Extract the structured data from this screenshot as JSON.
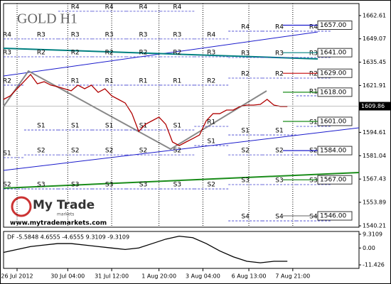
{
  "chart_data": [
    {
      "type": "line",
      "title": "GOLD H1",
      "color": "#b00000",
      "x": [
        0,
        1,
        2,
        3,
        4,
        5,
        6,
        7,
        8,
        9,
        10,
        11,
        12,
        13,
        14,
        15,
        16,
        17,
        18,
        19,
        20,
        21,
        22,
        23,
        24,
        25,
        26,
        27,
        28,
        29,
        30,
        31,
        32,
        33,
        34,
        35,
        36,
        37,
        38,
        39,
        40,
        41,
        42
      ],
      "values": [
        1613.8,
        1615.9,
        1620.0,
        1624.1,
        1628.3,
        1622.9,
        1624.1,
        1622.1,
        1621.2,
        1620.0,
        1618.8,
        1622.1,
        1620.0,
        1622.1,
        1617.9,
        1620.0,
        1615.9,
        1613.8,
        1611.7,
        1605.5,
        1595.2,
        1599.3,
        1601.4,
        1603.5,
        1599.3,
        1589.0,
        1586.9,
        1589.0,
        1591.0,
        1593.1,
        1601.4,
        1605.5,
        1605.5,
        1607.6,
        1607.6,
        1609.7,
        1610.5,
        1610.5,
        1610.9,
        1613.8,
        1610.5,
        1609.7,
        1609.7
      ],
      "xlim": [
        0,
        52.6
      ],
      "xticks": [
        {
          "value": 2,
          "label": "26 Jul 2012"
        },
        {
          "value": 9.5,
          "label": "30 Jul 04:00"
        },
        {
          "value": 16,
          "label": "31 Jul 12:00"
        },
        {
          "value": 23,
          "label": "1 Aug 20:00"
        },
        {
          "value": 29.5,
          "label": "3 Aug 04:00"
        },
        {
          "value": 36.3,
          "label": "6 Aug 13:00"
        },
        {
          "value": 42.8,
          "label": "7 Aug 21:00"
        }
      ],
      "ylim": [
        1539.4,
        1669.6
      ],
      "yticks": [
        1662.61,
        1649.07,
        1635.45,
        1621.91,
        1594.61,
        1581.04,
        1567.43,
        1553.89,
        1540.21
      ],
      "current_price": 1609.86,
      "grid": true,
      "levels": [
        {
          "value": 1657,
          "label": "1657.00",
          "color": "#1a1acc"
        },
        {
          "value": 1641,
          "label": "1641.00",
          "color": "#008080"
        },
        {
          "value": 1629,
          "label": "1629.00",
          "color": "#cc2020"
        },
        {
          "value": 1618,
          "label": "1618.00",
          "color": "#1a8c1a"
        },
        {
          "value": 1601,
          "label": "1601.00",
          "color": "#1a8c1a"
        },
        {
          "value": 1584,
          "label": "1584.00",
          "color": "#1a1acc"
        },
        {
          "value": 1567,
          "label": "1567.00",
          "color": "#1a8c1a"
        },
        {
          "value": 1546,
          "label": "1546.00",
          "color": "#808080"
        }
      ],
      "pivot_color": "#3a3acc",
      "pivots": [
        [
          {
            "name": "R4",
            "value": 1649.0
          },
          {
            "name": "R3",
            "value": 1638.6
          },
          {
            "name": "R2",
            "value": 1622.1
          },
          {
            "name": "S1",
            "value": 1579.9
          },
          {
            "name": "S2",
            "value": 1561.7
          }
        ],
        [
          {
            "name": "R3",
            "value": 1649.0
          },
          {
            "name": "R2",
            "value": 1638.6
          },
          {
            "name": "S1",
            "value": 1596.0
          },
          {
            "name": "S2",
            "value": 1581.5
          },
          {
            "name": "S3",
            "value": 1561.7
          }
        ],
        [
          {
            "name": "R4",
            "value": 1665.1
          },
          {
            "name": "R3",
            "value": 1649.0
          },
          {
            "name": "R2",
            "value": 1638.6
          },
          {
            "name": "R1",
            "value": 1622.1
          },
          {
            "name": "S1",
            "value": 1596.0
          },
          {
            "name": "S2",
            "value": 1581.5
          },
          {
            "name": "S3",
            "value": 1561.7
          }
        ],
        [
          {
            "name": "R4",
            "value": 1665.1
          },
          {
            "name": "R3",
            "value": 1649.0
          },
          {
            "name": "R2",
            "value": 1638.6
          },
          {
            "name": "R1",
            "value": 1622.1
          },
          {
            "name": "S1",
            "value": 1596.0
          },
          {
            "name": "S2",
            "value": 1581.5
          },
          {
            "name": "S3",
            "value": 1561.7
          }
        ],
        [
          {
            "name": "R4",
            "value": 1665.1
          },
          {
            "name": "R3",
            "value": 1649.0
          },
          {
            "name": "R2",
            "value": 1638.6
          },
          {
            "name": "R1",
            "value": 1622.1
          },
          {
            "name": "S1",
            "value": 1596.0
          },
          {
            "name": "S2",
            "value": 1581.5
          },
          {
            "name": "S3",
            "value": 1561.7
          }
        ],
        [
          {
            "name": "R4",
            "value": 1665.1
          },
          {
            "name": "R3",
            "value": 1649.0
          },
          {
            "name": "R2",
            "value": 1638.6
          },
          {
            "name": "R1",
            "value": 1622.1
          },
          {
            "name": "S1",
            "value": 1596.0
          },
          {
            "name": "S2",
            "value": 1581.5
          },
          {
            "name": "S3",
            "value": 1561.7
          }
        ],
        [
          {
            "name": "R4",
            "value": 1649.0
          },
          {
            "name": "R3",
            "value": 1638.6
          },
          {
            "name": "R2",
            "value": 1622.1
          },
          {
            "name": "R1",
            "value": 1598.1
          },
          {
            "name": "S1",
            "value": 1586.9
          },
          {
            "name": "S2",
            "value": 1561.7
          }
        ],
        [
          {
            "name": "R4",
            "value": 1653.5
          },
          {
            "name": "R3",
            "value": 1638.2
          },
          {
            "name": "R2",
            "value": 1626.2
          },
          {
            "name": "S1",
            "value": 1593.1
          },
          {
            "name": "S2",
            "value": 1581.5
          },
          {
            "name": "S3",
            "value": 1564.2
          },
          {
            "name": "S4",
            "value": 1543.1
          }
        ],
        [
          {
            "name": "R4",
            "value": 1653.5
          },
          {
            "name": "R3",
            "value": 1638.2
          },
          {
            "name": "R2",
            "value": 1626.2
          },
          {
            "name": "S1",
            "value": 1593.1
          },
          {
            "name": "S2",
            "value": 1581.5
          },
          {
            "name": "S3",
            "value": 1564.2
          },
          {
            "name": "S4",
            "value": 1543.1
          }
        ],
        [
          {
            "name": "R4",
            "value": 1653.5
          },
          {
            "name": "R3",
            "value": 1638.2
          },
          {
            "name": "R2",
            "value": 1626.2
          },
          {
            "name": "R1",
            "value": 1615.9
          },
          {
            "name": "S1",
            "value": 1598.1
          },
          {
            "name": "S2",
            "value": 1581.5
          },
          {
            "name": "S3",
            "value": 1564.2
          },
          {
            "name": "S4",
            "value": 1543.1
          }
        ]
      ]
    },
    {
      "type": "line",
      "title": "DF -5.5848 4.6555 -4.6555 9.3109 -9.3109",
      "color": "#000000",
      "x": [
        0,
        2,
        4,
        6,
        8,
        10,
        12,
        14,
        16,
        18,
        20,
        22,
        24,
        26,
        28,
        30,
        32,
        34,
        36,
        38,
        40,
        42
      ],
      "values": [
        -3,
        -1,
        1,
        2,
        3,
        3,
        2,
        1,
        0,
        -1,
        0,
        3,
        6,
        8,
        7,
        3,
        -2,
        -6,
        -9,
        -10,
        -9,
        -9
      ],
      "xlim": [
        0,
        52.6
      ],
      "ylim": [
        -13.8,
        11.2
      ],
      "yticks": [
        9.3109,
        {
          "value": 0,
          "label": "0.00"
        },
        -11.426
      ]
    }
  ],
  "logo": {
    "name": "My Trade",
    "tagline": "markets",
    "url": "www.mytrademarkets.com"
  }
}
